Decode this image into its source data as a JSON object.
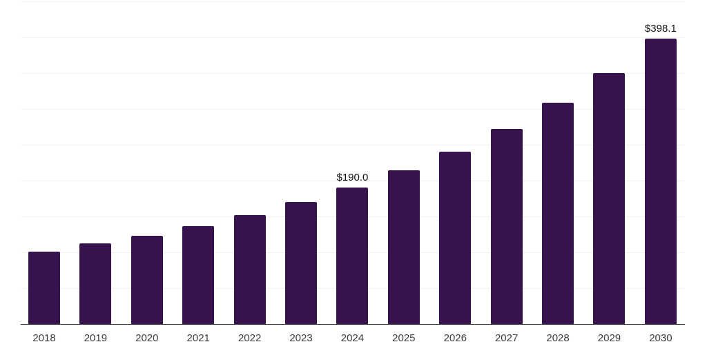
{
  "chart_data": {
    "type": "bar",
    "title": "",
    "xlabel": "",
    "ylabel": "",
    "categories": [
      "2018",
      "2019",
      "2020",
      "2021",
      "2022",
      "2023",
      "2024",
      "2025",
      "2026",
      "2027",
      "2028",
      "2029",
      "2030"
    ],
    "values": [
      101.0,
      112.8,
      122.8,
      136.2,
      151.6,
      170.5,
      190.0,
      214.3,
      240.4,
      271.8,
      308.6,
      350.0,
      398.1
    ],
    "data_labels": [
      "",
      "",
      "",
      "",
      "",
      "",
      "$190.0",
      "",
      "",
      "",
      "",
      "",
      "$398.1"
    ],
    "ylim": [
      0,
      450
    ],
    "gridline_step": 50,
    "grid": "horizontal",
    "legend_position": "none",
    "colors": {
      "bar": "#36124e",
      "gridline": "#f0f0f0",
      "axis_line": "#3a3a3a",
      "tick_label": "#3b3b3b",
      "value_label": "#111111",
      "background": "#ffffff"
    }
  }
}
